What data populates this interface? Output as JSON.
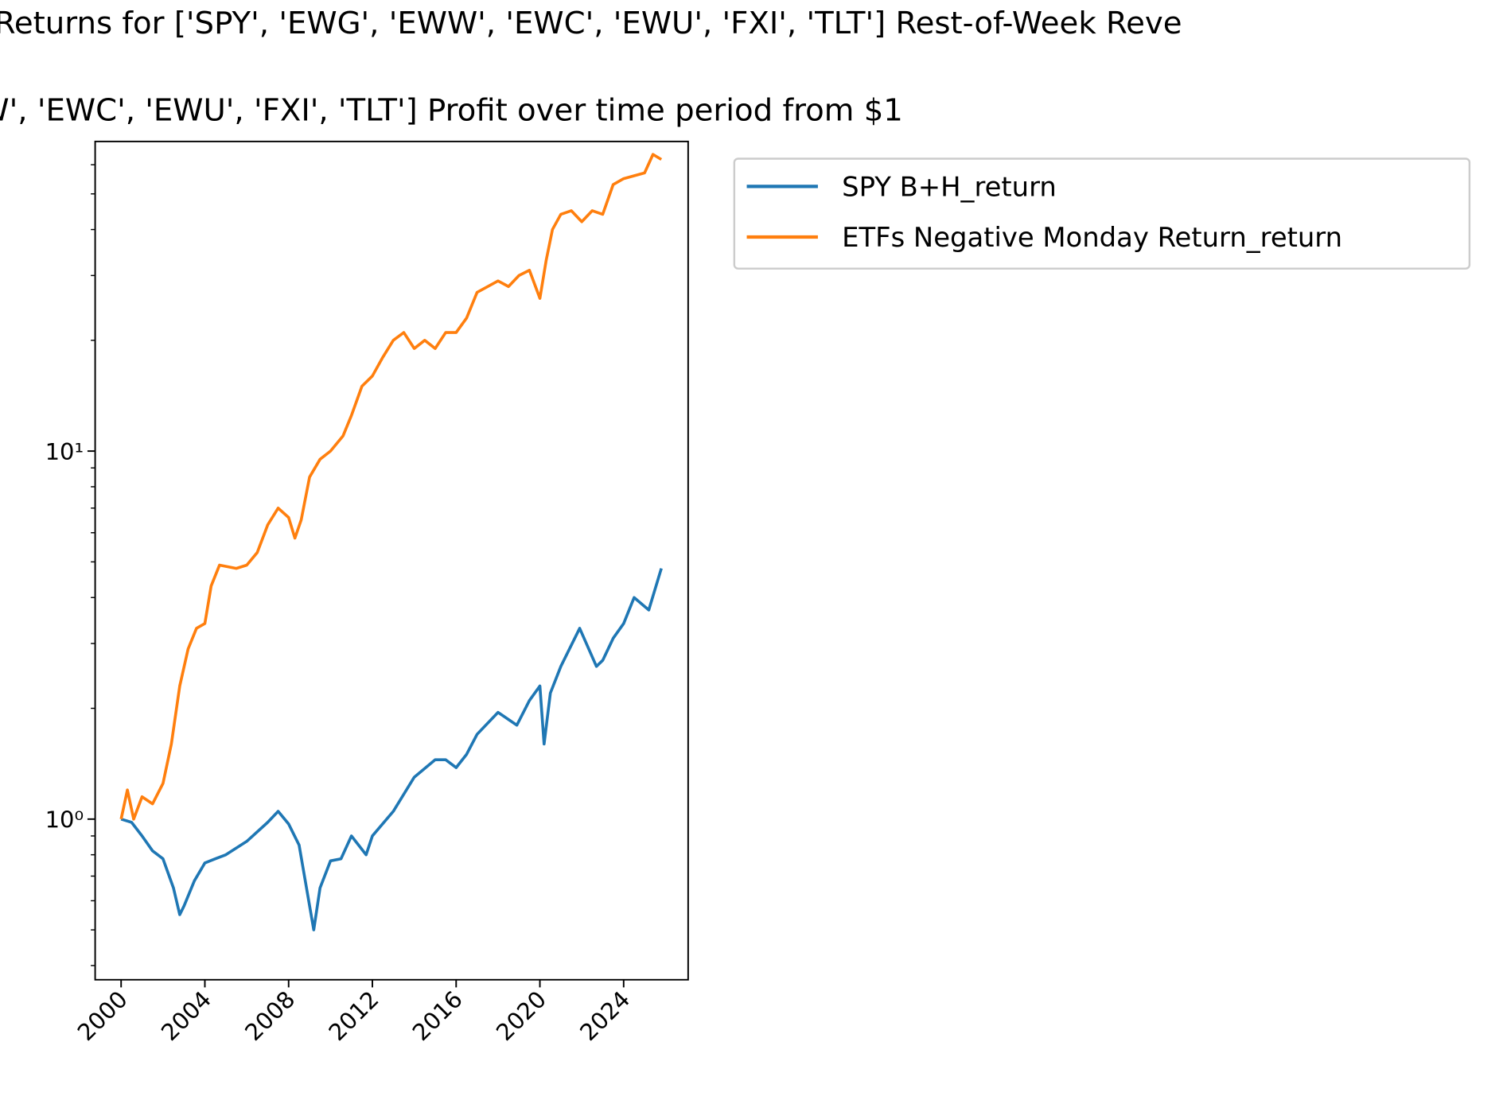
{
  "chart_data": {
    "type": "line",
    "titles": [
      "Returns for ['SPY', 'EWG', 'EWW', 'EWC', 'EWU', 'FXI', 'TLT'] Rest-of-Week Reve",
      "W', 'EWC', 'EWU', 'FXI', 'TLT'] Profit over time period from $1"
    ],
    "log_y": true,
    "legend": "outside-upper-right",
    "xlim": [
      1998.76,
      2027.08
    ],
    "xticks": [
      2000,
      2004,
      2008,
      2012,
      2016,
      2020,
      2024
    ],
    "ylim": [
      0.366,
      69.4
    ],
    "yticks": [
      {
        "value": 1,
        "label": "10⁰"
      },
      {
        "value": 10,
        "label": "10¹"
      }
    ],
    "yminorticks": [
      0.4,
      0.5,
      0.6,
      0.7,
      0.8,
      0.9,
      2,
      3,
      4,
      5,
      6,
      7,
      8,
      9,
      20,
      30,
      40,
      50,
      60
    ],
    "series": [
      {
        "name": "SPY B+H_return",
        "color": "#1f77b4",
        "x": [
          2000,
          2000.5,
          2001,
          2001.5,
          2002,
          2002.5,
          2002.8,
          2003,
          2003.5,
          2004,
          2004.5,
          2005,
          2006,
          2007,
          2007.5,
          2008,
          2008.5,
          2009.2,
          2009.5,
          2010,
          2010.5,
          2011,
          2011.7,
          2012,
          2013,
          2014,
          2015,
          2015.5,
          2016,
          2016.5,
          2017,
          2018,
          2018.9,
          2019.5,
          2020,
          2020.2,
          2020.5,
          2021,
          2021.9,
          2022.7,
          2023,
          2023.5,
          2024,
          2024.5,
          2025.2,
          2025.8
        ],
        "values": [
          1.0,
          0.98,
          0.9,
          0.82,
          0.78,
          0.65,
          0.55,
          0.58,
          0.68,
          0.76,
          0.78,
          0.8,
          0.87,
          0.98,
          1.05,
          0.97,
          0.85,
          0.5,
          0.65,
          0.77,
          0.78,
          0.9,
          0.8,
          0.9,
          1.05,
          1.3,
          1.45,
          1.45,
          1.38,
          1.5,
          1.7,
          1.95,
          1.8,
          2.1,
          2.3,
          1.6,
          2.2,
          2.6,
          3.3,
          2.6,
          2.7,
          3.1,
          3.4,
          4.0,
          3.7,
          4.8
        ]
      },
      {
        "name": "ETFs Negative Monday Return_return",
        "color": "#ff7f0e",
        "x": [
          2000,
          2000.3,
          2000.6,
          2001,
          2001.5,
          2002,
          2002.4,
          2002.8,
          2003.2,
          2003.6,
          2004,
          2004.3,
          2004.7,
          2005.5,
          2006,
          2006.5,
          2007,
          2007.5,
          2008,
          2008.3,
          2008.6,
          2009,
          2009.5,
          2010,
          2010.6,
          2011,
          2011.5,
          2012,
          2012.5,
          2013,
          2013.5,
          2014,
          2014.5,
          2015,
          2015.5,
          2016,
          2016.5,
          2017,
          2018,
          2018.5,
          2019,
          2019.5,
          2020,
          2020.3,
          2020.6,
          2021,
          2021.5,
          2022,
          2022.5,
          2023,
          2023.5,
          2024,
          2024.5,
          2025,
          2025.4,
          2025.8
        ],
        "values": [
          1.0,
          1.2,
          1.0,
          1.15,
          1.1,
          1.25,
          1.6,
          2.3,
          2.9,
          3.3,
          3.4,
          4.3,
          4.9,
          4.8,
          4.9,
          5.3,
          6.3,
          7.0,
          6.6,
          5.8,
          6.5,
          8.5,
          9.5,
          10,
          11,
          12.5,
          15,
          16,
          18,
          20,
          21,
          19,
          20,
          19,
          21,
          21,
          23,
          27,
          29,
          28,
          30,
          31,
          26,
          33,
          40,
          44,
          45,
          42,
          45,
          44,
          53,
          55,
          56,
          57,
          64,
          62
        ]
      }
    ]
  }
}
